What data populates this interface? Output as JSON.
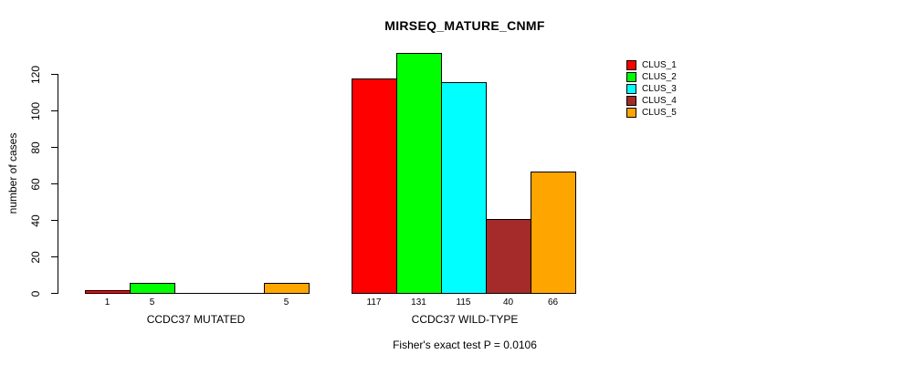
{
  "chart_data": {
    "type": "bar",
    "title": "MIRSEQ_MATURE_CNMF",
    "ylabel": "number of cases",
    "subtitle": "Fisher's exact test P = 0.0106",
    "ylim": [
      0,
      131
    ],
    "yticks": [
      0,
      20,
      40,
      60,
      80,
      100,
      120
    ],
    "grid": false,
    "legend_position": "top-right",
    "series_names": [
      "CLUS_1",
      "CLUS_2",
      "CLUS_3",
      "CLUS_4",
      "CLUS_5"
    ],
    "colors": [
      "#FF0000",
      "#00FF00",
      "#00FFFF",
      "#A52A2A",
      "#FFA500"
    ],
    "groups": [
      {
        "label": "CCDC37 MUTATED",
        "values": [
          1,
          5,
          0,
          0,
          5
        ],
        "bar_labels": [
          "1",
          "5",
          "",
          "",
          "5"
        ]
      },
      {
        "label": "CCDC37 WILD-TYPE",
        "values": [
          117,
          131,
          115,
          40,
          66
        ],
        "bar_labels": [
          "117",
          "131",
          "115",
          "40",
          "66"
        ]
      }
    ]
  }
}
